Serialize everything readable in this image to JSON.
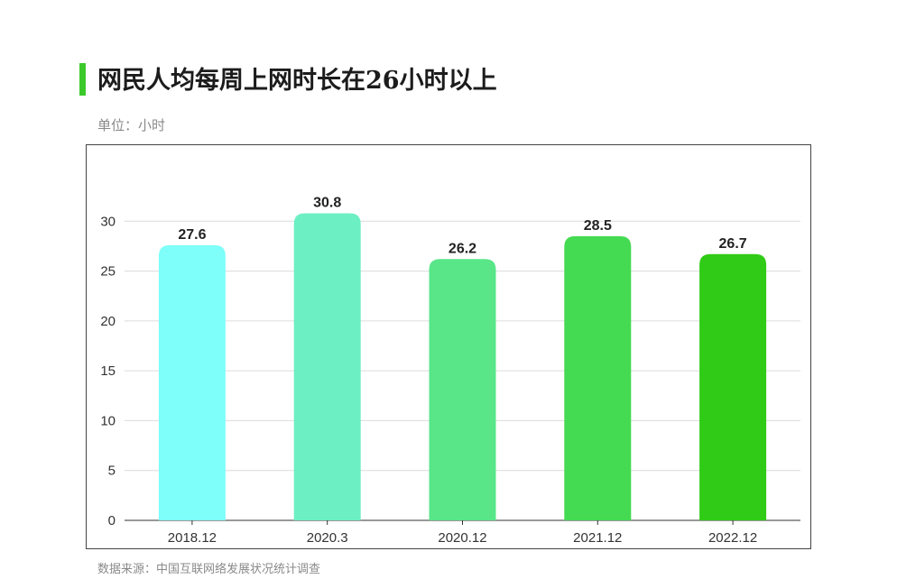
{
  "header": {
    "title": "网民人均每周上网时长在26小时以上",
    "unit": "单位：小时",
    "accent_color": "#3cc92c"
  },
  "footer": {
    "source": "数据来源：中国互联网络发展状况统计调查"
  },
  "chart_data": {
    "type": "bar",
    "categories": [
      "2018.12",
      "2020.3",
      "2020.12",
      "2021.12",
      "2022.12"
    ],
    "values": [
      27.6,
      30.8,
      26.2,
      28.5,
      26.7
    ],
    "value_labels": [
      "27.6",
      "30.8",
      "26.2",
      "28.5",
      "26.7"
    ],
    "bar_colors": [
      "#7efffa",
      "#6cefc3",
      "#58e688",
      "#44da52",
      "#30cb16"
    ],
    "ylim": [
      0,
      35
    ],
    "yticks": [
      0,
      5,
      10,
      15,
      20,
      25,
      30
    ],
    "grid": true,
    "xlabel": "",
    "ylabel": ""
  }
}
